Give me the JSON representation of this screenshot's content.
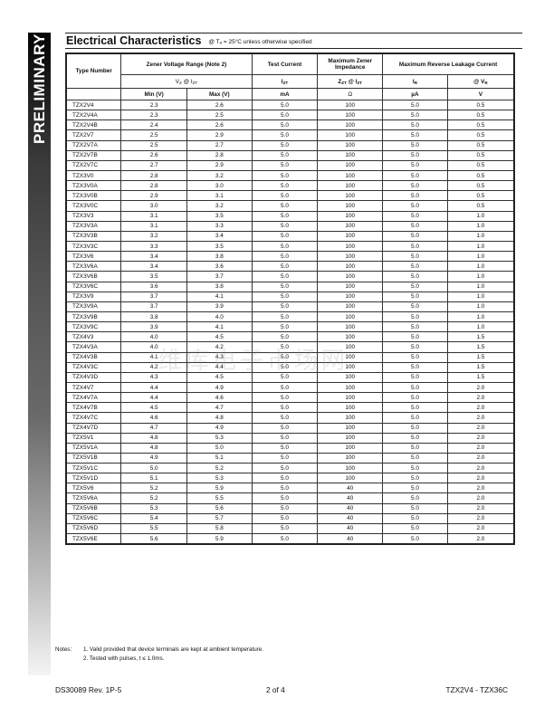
{
  "sidebar": {
    "label": "PRELIMINARY"
  },
  "header": {
    "title": "Electrical Characteristics",
    "condition": "@ Tₐ = 25°C unless otherwise specified"
  },
  "table": {
    "headers": {
      "type": "Type Number",
      "zener_range": "Zener Voltage Range (Note 2)",
      "test_current": "Test Current",
      "max_impedance": "Maximum Zener Impedance",
      "max_leakage": "Maximum Reverse Leakage Current",
      "vz_izt": "V",
      "vz_izt_sub": "Z",
      "vz_at": " @ I",
      "vz_at_sub": "ZT",
      "izt": "I",
      "izt_sub": "ZT",
      "zzt": "Z",
      "zzt_sub": "ZT",
      "zzt_at": " @ I",
      "zzt_at_sub": "ZT",
      "ir": "I",
      "ir_sub": "R",
      "vr": "@ V",
      "vr_sub": "R",
      "min_unit": "Min (V)",
      "max_unit": "Max (V)",
      "ma_unit": "mA",
      "ohm_unit": "Ω",
      "ua_unit": "µA",
      "v_unit": "V"
    },
    "rows": [
      [
        "TZX2V4",
        "2.3",
        "2.6",
        "5.0",
        "100",
        "5.0",
        "0.5"
      ],
      [
        "TZX2V4A",
        "2.3",
        "2.5",
        "5.0",
        "100",
        "5.0",
        "0.5"
      ],
      [
        "TZX2V4B",
        "2.4",
        "2.6",
        "5.0",
        "100",
        "5.0",
        "0.5"
      ],
      [
        "TZX2V7",
        "2.5",
        "2.9",
        "5.0",
        "100",
        "5.0",
        "0.5"
      ],
      [
        "TZX2V7A",
        "2.5",
        "2.7",
        "5.0",
        "100",
        "5.0",
        "0.5"
      ],
      [
        "TZX2V7B",
        "2.6",
        "2.8",
        "5.0",
        "100",
        "5.0",
        "0.5"
      ],
      [
        "TZX2V7C",
        "2.7",
        "2.9",
        "5.0",
        "100",
        "5.0",
        "0.5"
      ],
      [
        "TZX3V0",
        "2.8",
        "3.2",
        "5.0",
        "100",
        "5.0",
        "0.5"
      ],
      [
        "TZX3V0A",
        "2.8",
        "3.0",
        "5.0",
        "100",
        "5.0",
        "0.5"
      ],
      [
        "TZX3V0B",
        "2.9",
        "3.1",
        "5.0",
        "100",
        "5.0",
        "0.5"
      ],
      [
        "TZX3V0C",
        "3.0",
        "3.2",
        "5.0",
        "100",
        "5.0",
        "0.5"
      ],
      [
        "TZX3V3",
        "3.1",
        "3.5",
        "5.0",
        "100",
        "5.0",
        "1.0"
      ],
      [
        "TZX3V3A",
        "3.1",
        "3.3",
        "5.0",
        "100",
        "5.0",
        "1.0"
      ],
      [
        "TZX3V3B",
        "3.2",
        "3.4",
        "5.0",
        "100",
        "5.0",
        "1.0"
      ],
      [
        "TZX3V3C",
        "3.3",
        "3.5",
        "5.0",
        "100",
        "5.0",
        "1.0"
      ],
      [
        "TZX3V6",
        "3.4",
        "3.8",
        "5.0",
        "100",
        "5.0",
        "1.0"
      ],
      [
        "TZX3V6A",
        "3.4",
        "3.6",
        "5.0",
        "100",
        "5.0",
        "1.0"
      ],
      [
        "TZX3V6B",
        "3.5",
        "3.7",
        "5.0",
        "100",
        "5.0",
        "1.0"
      ],
      [
        "TZX3V6C",
        "3.6",
        "3.8",
        "5.0",
        "100",
        "5.0",
        "1.0"
      ],
      [
        "TZX3V9",
        "3.7",
        "4.1",
        "5.0",
        "100",
        "5.0",
        "1.0"
      ],
      [
        "TZX3V9A",
        "3.7",
        "3.9",
        "5.0",
        "100",
        "5.0",
        "1.0"
      ],
      [
        "TZX3V9B",
        "3.8",
        "4.0",
        "5.0",
        "100",
        "5.0",
        "1.0"
      ],
      [
        "TZX3V9C",
        "3.9",
        "4.1",
        "5.0",
        "100",
        "5.0",
        "1.0"
      ],
      [
        "TZX4V3",
        "4.0",
        "4.5",
        "5.0",
        "100",
        "5.0",
        "1.5"
      ],
      [
        "TZX4V3A",
        "4.0",
        "4.2",
        "5.0",
        "100",
        "5.0",
        "1.5"
      ],
      [
        "TZX4V3B",
        "4.1",
        "4.3",
        "5.0",
        "100",
        "5.0",
        "1.5"
      ],
      [
        "TZX4V3C",
        "4.2",
        "4.4",
        "5.0",
        "100",
        "5.0",
        "1.5"
      ],
      [
        "TZX4V3D",
        "4.3",
        "4.5",
        "5.0",
        "100",
        "5.0",
        "1.5"
      ],
      [
        "TZX4V7",
        "4.4",
        "4.9",
        "5.0",
        "100",
        "5.0",
        "2.0"
      ],
      [
        "TZX4V7A",
        "4.4",
        "4.6",
        "5.0",
        "100",
        "5.0",
        "2.0"
      ],
      [
        "TZX4V7B",
        "4.5",
        "4.7",
        "5.0",
        "100",
        "5.0",
        "2.0"
      ],
      [
        "TZX4V7C",
        "4.6",
        "4.8",
        "5.0",
        "100",
        "5.0",
        "2.0"
      ],
      [
        "TZX4V7D",
        "4.7",
        "4.9",
        "5.0",
        "100",
        "5.0",
        "2.0"
      ],
      [
        "TZX5V1",
        "4.8",
        "5.3",
        "5.0",
        "100",
        "5.0",
        "2.0"
      ],
      [
        "TZX5V1A",
        "4.8",
        "5.0",
        "5.0",
        "100",
        "5.0",
        "2.0"
      ],
      [
        "TZX5V1B",
        "4.9",
        "5.1",
        "5.0",
        "100",
        "5.0",
        "2.0"
      ],
      [
        "TZX5V1C",
        "5.0",
        "5.2",
        "5.0",
        "100",
        "5.0",
        "2.0"
      ],
      [
        "TZX5V1D",
        "5.1",
        "5.3",
        "5.0",
        "100",
        "5.0",
        "2.0"
      ],
      [
        "TZX5V6",
        "5.2",
        "5.9",
        "5.0",
        "40",
        "5.0",
        "2.0"
      ],
      [
        "TZX5V6A",
        "5.2",
        "5.5",
        "5.0",
        "40",
        "5.0",
        "2.0"
      ],
      [
        "TZX5V6B",
        "5.3",
        "5.6",
        "5.0",
        "40",
        "5.0",
        "2.0"
      ],
      [
        "TZX5V6C",
        "5.4",
        "5.7",
        "5.0",
        "40",
        "5.0",
        "2.0"
      ],
      [
        "TZX5V6D",
        "5.5",
        "5.8",
        "5.0",
        "40",
        "5.0",
        "2.0"
      ],
      [
        "TZX5V6E",
        "5.6",
        "5.9",
        "5.0",
        "40",
        "5.0",
        "2.0"
      ]
    ]
  },
  "watermark": "维库电子市场网",
  "notes": {
    "label": "Notes:",
    "items": [
      "1. Valid provided that device terminals are kept at ambient temperature.",
      "2. Tested with pulses, t ≤ 1.0ms."
    ]
  },
  "footer": {
    "doc_number": "DS30089 Rev. 1P-5",
    "page": "2 of 4",
    "part_range": "TZX2V4 - TZX36C"
  }
}
